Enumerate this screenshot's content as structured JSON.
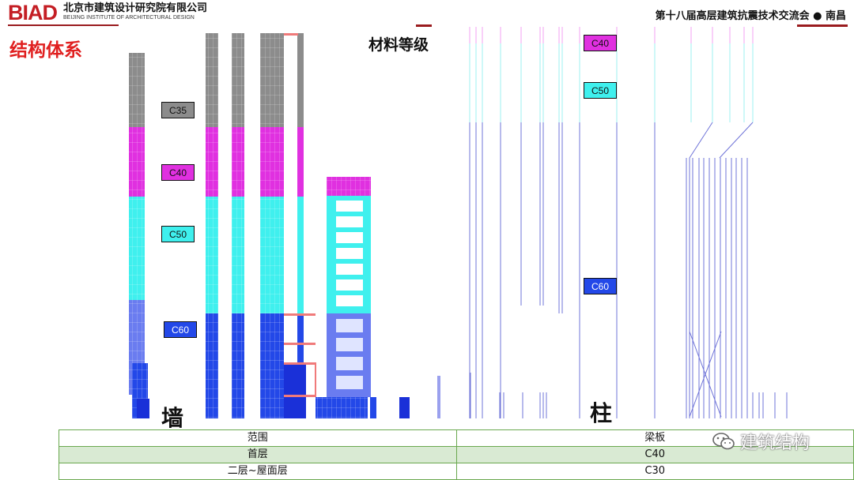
{
  "header": {
    "logo_mark": "BIAD",
    "logo_cn": "北京市建筑设计研究院有限公司",
    "logo_en": "BEIJING INSTITUTE OF ARCHITECTURAL DESIGN",
    "conference": "第十八届高层建筑抗震技术交流会 ● 南昌"
  },
  "page_title": "结构体系",
  "material_title": "材料等级",
  "wall": {
    "label": "墙",
    "grades": [
      "C35",
      "C40",
      "C50",
      "C60"
    ]
  },
  "column": {
    "label": "柱",
    "grades": [
      "C40",
      "C50",
      "C60"
    ]
  },
  "colors": {
    "C35": "#8c8c8c",
    "C40": "#e030e0",
    "C50": "#3ff0ee",
    "C60": "#2348e8",
    "brand": "#c41e24",
    "title": "#e02020",
    "table_border": "#6aa84f",
    "table_alt": "#d9ead3"
  },
  "table": {
    "headers": [
      "范围",
      "梁板"
    ],
    "rows": [
      [
        "首层",
        "C40"
      ],
      [
        "二层~屋面层",
        "C30"
      ]
    ]
  },
  "watermark": "建筑结构"
}
